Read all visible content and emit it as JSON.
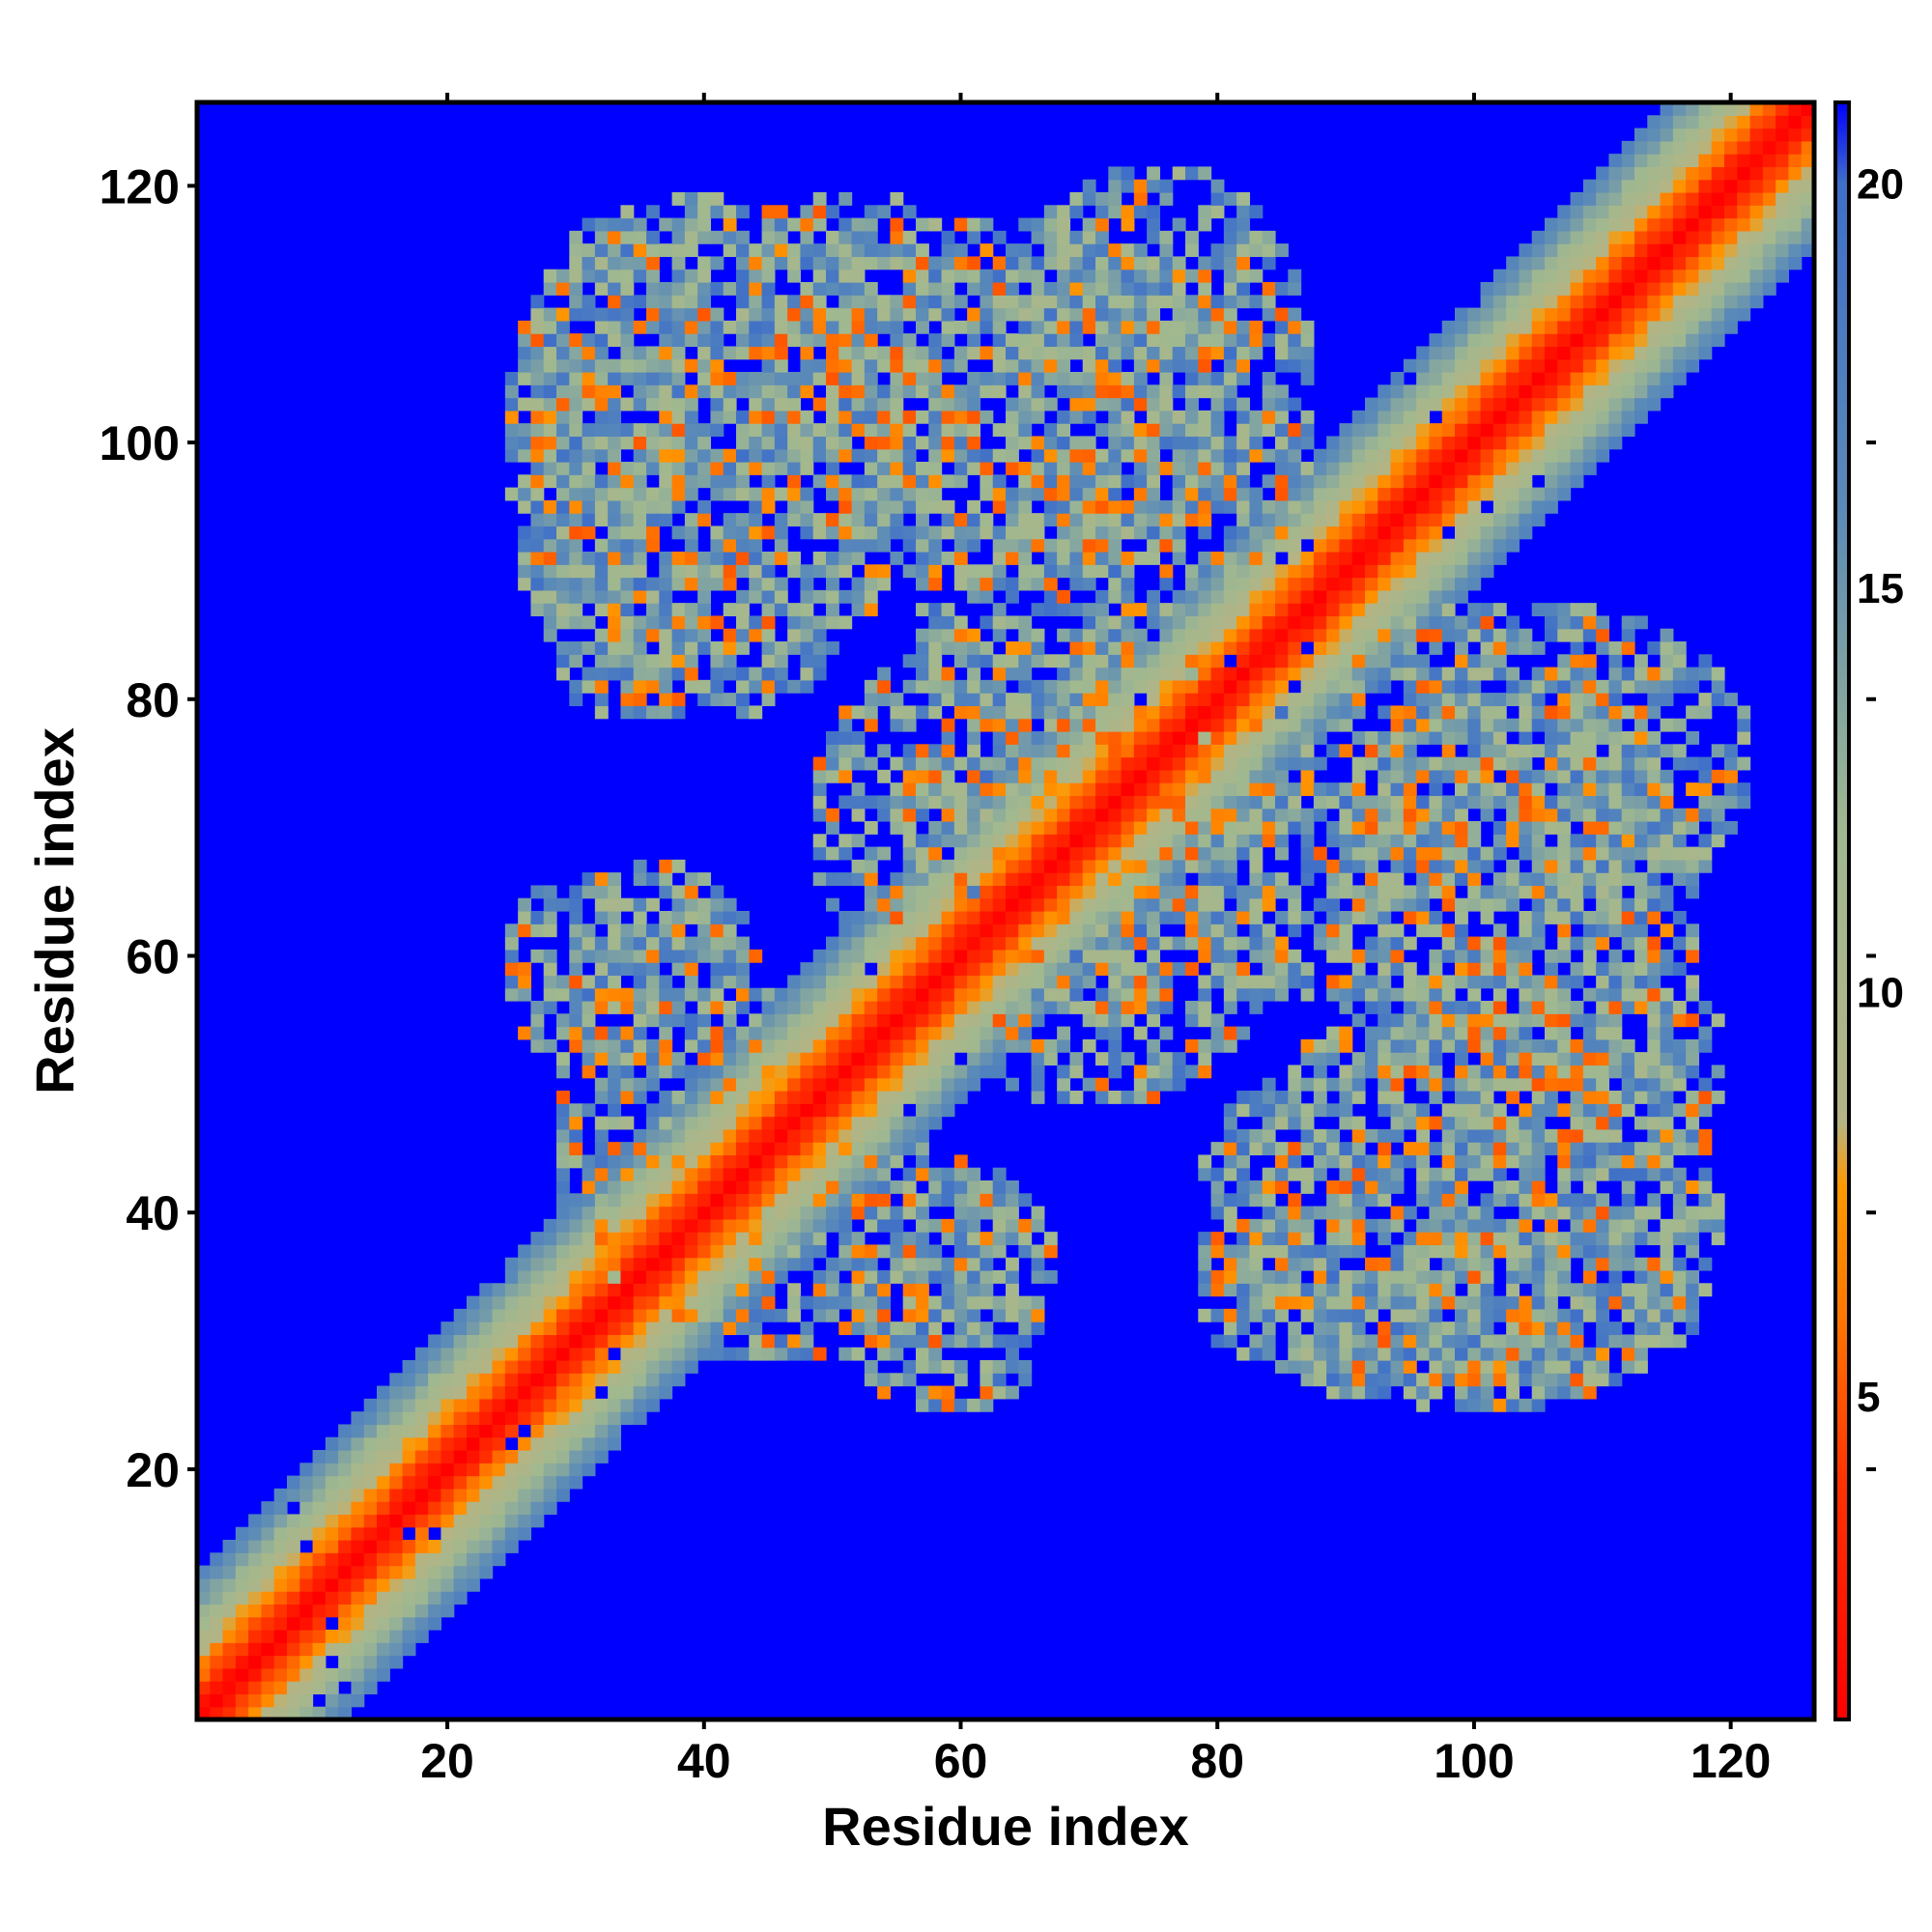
{
  "chart_data": {
    "type": "heatmap",
    "title": "",
    "xlabel": "Residue index",
    "ylabel": "Residue index",
    "n_residues": 126,
    "xlim": [
      1,
      126
    ],
    "ylim": [
      1,
      126
    ],
    "x_ticks": [
      20,
      40,
      60,
      80,
      100,
      120
    ],
    "y_ticks": [
      20,
      40,
      60,
      80,
      100,
      120
    ],
    "tick_labels_x": [
      "20",
      "40",
      "60",
      "80",
      "100",
      "120"
    ],
    "tick_labels_y": [
      "20",
      "40",
      "60",
      "80",
      "100",
      "120"
    ],
    "colorbar": {
      "range": [
        1,
        21
      ],
      "ticks": [
        5,
        10,
        15,
        20
      ],
      "tick_labels": [
        "5",
        "10",
        "15",
        "20"
      ],
      "stops": [
        {
          "value": 1,
          "color": "#ff0000"
        },
        {
          "value": 4,
          "color": "#ff3300"
        },
        {
          "value": 6,
          "color": "#ff7700"
        },
        {
          "value": 7.6,
          "color": "#ff9900"
        },
        {
          "value": 8.4,
          "color": "#b4b484"
        },
        {
          "value": 12,
          "color": "#a0b890"
        },
        {
          "value": 16,
          "color": "#5a8ab8"
        },
        {
          "value": 20,
          "color": "#3f6fc8"
        },
        {
          "value": 21,
          "color": "#0000ff"
        }
      ]
    },
    "background_value": 21,
    "diagonal_band": {
      "core_value": 1,
      "half_width_residues": 11
    },
    "contact_regions": [
      {
        "x_range": [
          24,
          56
        ],
        "y_range": [
          78,
          120
        ],
        "density": 0.7
      },
      {
        "x_range": [
          44,
          84
        ],
        "y_range": [
          88,
          118
        ],
        "density": 0.65
      },
      {
        "x_range": [
          48,
          82
        ],
        "y_range": [
          55,
          86
        ],
        "density": 0.6
      },
      {
        "x_range": [
          24,
          44
        ],
        "y_range": [
          50,
          68
        ],
        "density": 0.55
      },
      {
        "x_range": [
          30,
          68
        ],
        "y_range": [
          28,
          46
        ],
        "density": 0.6
      },
      {
        "x_range": [
          78,
          118
        ],
        "y_range": [
          25,
          42
        ],
        "density": 0.65
      },
      {
        "x_range": [
          92,
          120
        ],
        "y_range": [
          42,
          62
        ],
        "density": 0.6
      },
      {
        "x_range": [
          86,
          122
        ],
        "y_range": [
          62,
          88
        ],
        "density": 0.65
      },
      {
        "x_range": [
          72,
          100
        ],
        "y_range": [
          56,
          80
        ],
        "density": 0.6
      }
    ],
    "colors": {
      "background": "#0000ff",
      "diagonal": "#ff0000",
      "frame": "#000000"
    }
  }
}
